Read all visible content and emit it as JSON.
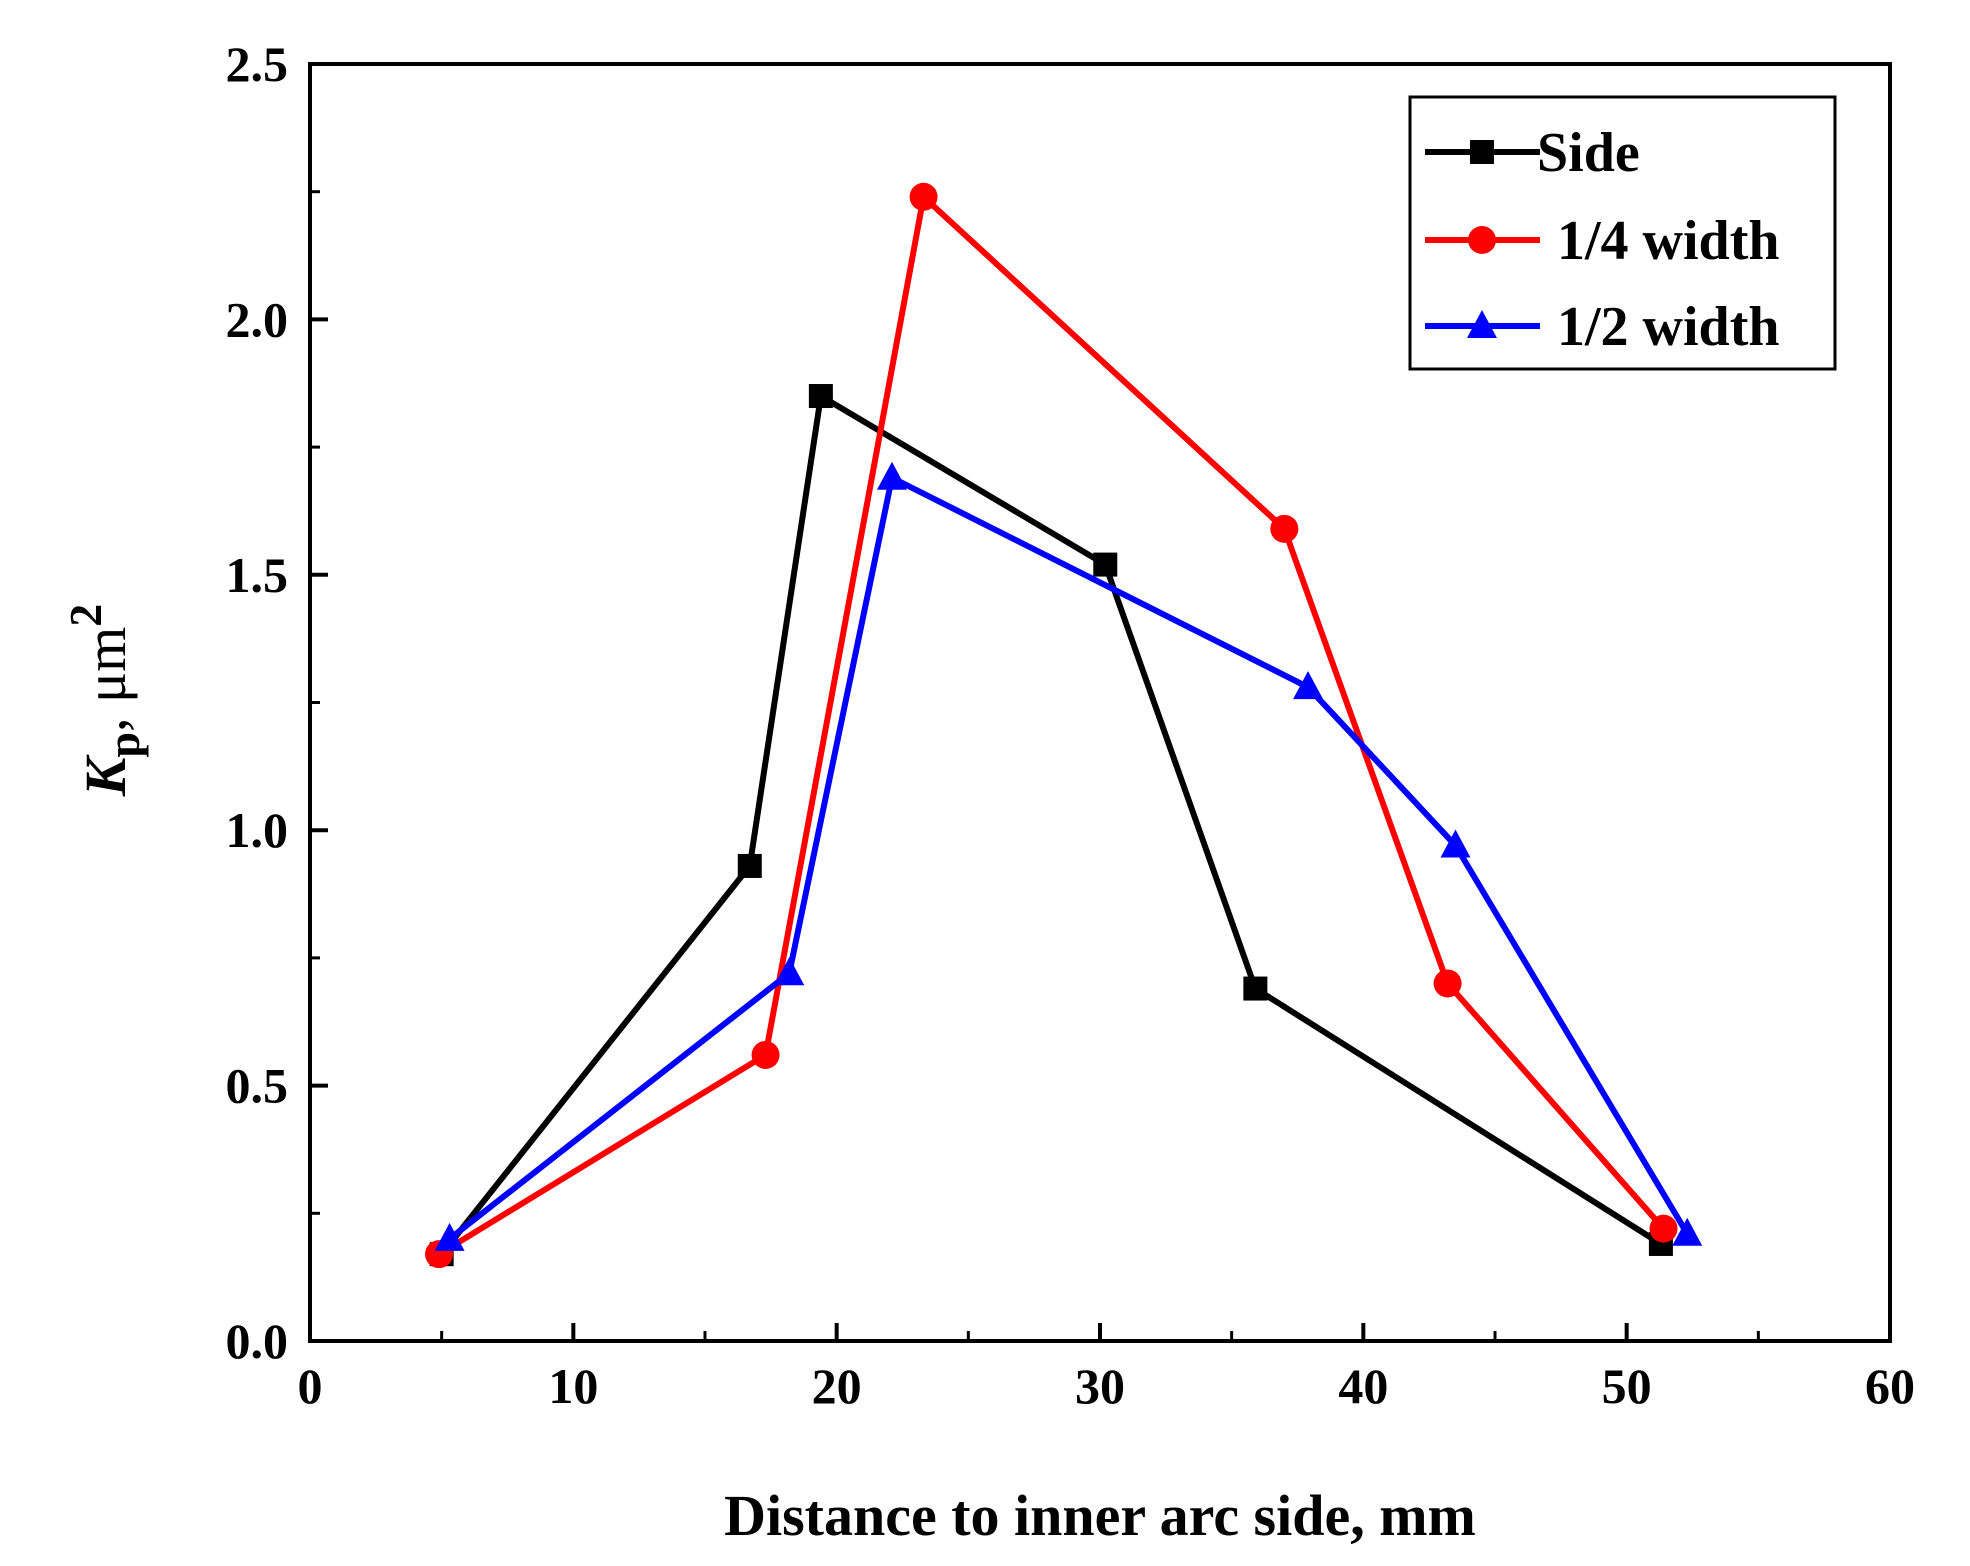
{
  "chart_data": {
    "type": "line",
    "xlabel": "Distance to inner arc side, mm",
    "ylabel": {
      "main": "K",
      "subscript": "p",
      "unit": ", μm",
      "superscript": "2"
    },
    "xlim": [
      0,
      60
    ],
    "ylim": [
      0,
      2.5
    ],
    "x_ticks": [
      0,
      10,
      20,
      30,
      40,
      50,
      60
    ],
    "x_tick_labels": [
      "0",
      "10",
      "20",
      "30",
      "40",
      "50",
      "60"
    ],
    "y_ticks": [
      0,
      0.5,
      1.0,
      1.5,
      2.0,
      2.5
    ],
    "y_tick_labels": [
      "0.0",
      "0.5",
      "1.0",
      "1.5",
      "2.0",
      "2.5"
    ],
    "grid": false,
    "legend_position": "top-right",
    "series": [
      {
        "name": "Side",
        "color": "#000000",
        "marker": "square",
        "x": [
          5.0,
          16.7,
          19.4,
          30.2,
          35.9,
          51.3
        ],
        "y": [
          0.17,
          0.93,
          1.85,
          1.52,
          0.69,
          0.19
        ]
      },
      {
        "name": "1/4 width",
        "color": "#ff0000",
        "marker": "circle",
        "x": [
          4.9,
          17.3,
          23.3,
          37.0,
          43.2,
          51.4
        ],
        "y": [
          0.17,
          0.56,
          2.24,
          1.59,
          0.7,
          0.22
        ]
      },
      {
        "name": "1/2 width",
        "color": "#0000ff",
        "marker": "triangle",
        "x": [
          5.3,
          18.2,
          22.1,
          37.9,
          43.5,
          52.3
        ],
        "y": [
          0.2,
          0.72,
          1.69,
          1.28,
          0.97,
          0.21
        ]
      }
    ]
  }
}
